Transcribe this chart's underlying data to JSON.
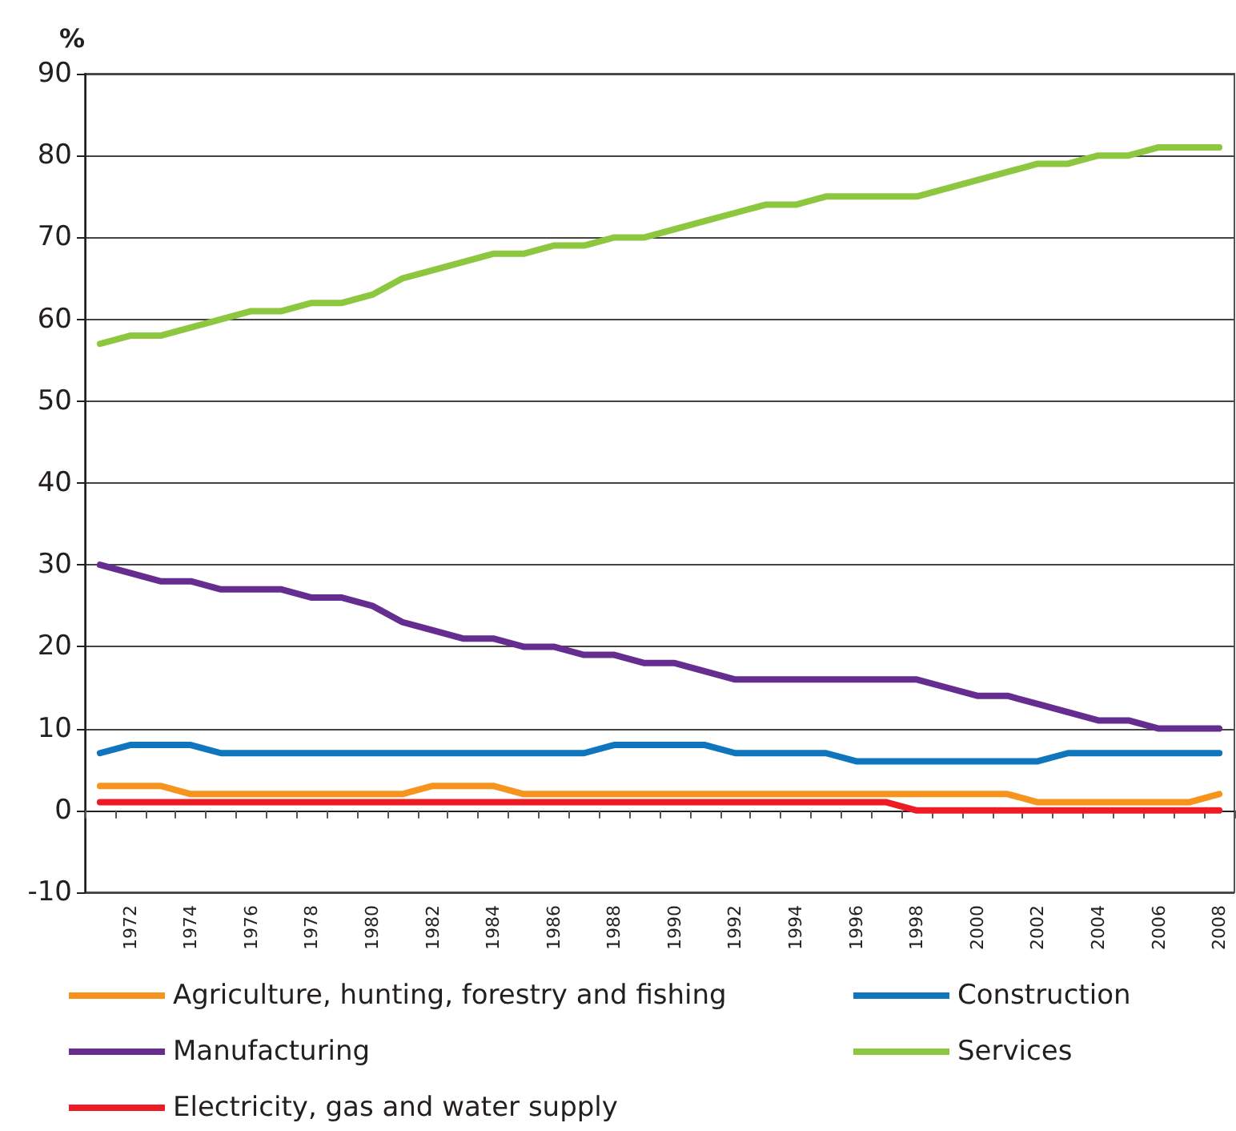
{
  "chart_data": {
    "type": "line",
    "ylabel": "%",
    "categories": [
      null,
      "1972",
      null,
      "1974",
      null,
      "1976",
      null,
      "1978",
      null,
      "1980",
      null,
      "1982",
      null,
      "1984",
      null,
      "1986",
      null,
      "1988",
      null,
      "1990",
      null,
      "1992",
      null,
      "1994",
      null,
      "1996",
      null,
      "1998",
      null,
      "2000",
      null,
      "2002",
      null,
      "2004",
      null,
      "2006",
      null,
      "2008"
    ],
    "series": [
      {
        "name": "Agriculture, hunting, forestry and fishing",
        "color": "#f7941d",
        "values": [
          3,
          3,
          3,
          2,
          2,
          2,
          2,
          2,
          2,
          2,
          2,
          3,
          3,
          3,
          2,
          2,
          2,
          2,
          2,
          2,
          2,
          2,
          2,
          2,
          2,
          2,
          2,
          2,
          2,
          2,
          2,
          1,
          1,
          1,
          1,
          1,
          1,
          2
        ]
      },
      {
        "name": "Construction",
        "color": "#0f75bc",
        "values": [
          7,
          8,
          8,
          8,
          7,
          7,
          7,
          7,
          7,
          7,
          7,
          7,
          7,
          7,
          7,
          7,
          7,
          8,
          8,
          8,
          8,
          7,
          7,
          7,
          7,
          6,
          6,
          6,
          6,
          6,
          6,
          6,
          7,
          7,
          7,
          7,
          7,
          7
        ]
      },
      {
        "name": "Manufacturing",
        "color": "#662d91",
        "values": [
          30,
          29,
          28,
          28,
          27,
          27,
          27,
          26,
          26,
          25,
          23,
          22,
          21,
          21,
          20,
          20,
          19,
          19,
          18,
          18,
          17,
          16,
          16,
          16,
          16,
          16,
          16,
          16,
          15,
          14,
          14,
          13,
          12,
          11,
          11,
          10,
          10,
          10
        ]
      },
      {
        "name": "Services",
        "color": "#8dc63f",
        "values": [
          57,
          58,
          58,
          59,
          60,
          61,
          61,
          62,
          62,
          63,
          65,
          66,
          67,
          68,
          68,
          69,
          69,
          70,
          70,
          71,
          72,
          73,
          74,
          74,
          75,
          75,
          75,
          75,
          76,
          77,
          78,
          79,
          79,
          80,
          80,
          81,
          81,
          81
        ]
      },
      {
        "name": "Electricity, gas and water supply",
        "color": "#ed1c24",
        "values": [
          1,
          1,
          1,
          1,
          1,
          1,
          1,
          1,
          1,
          1,
          1,
          1,
          1,
          1,
          1,
          1,
          1,
          1,
          1,
          1,
          1,
          1,
          1,
          1,
          1,
          1,
          1,
          0,
          0,
          0,
          0,
          0,
          0,
          0,
          0,
          0,
          0,
          0
        ]
      }
    ],
    "ylim": [
      -10,
      90
    ],
    "yticks": [
      -10,
      0,
      10,
      20,
      30,
      40,
      50,
      60,
      70,
      80,
      90
    ],
    "grid": "y",
    "legend": "bottom",
    "marker": "none",
    "line_style": "solid"
  }
}
